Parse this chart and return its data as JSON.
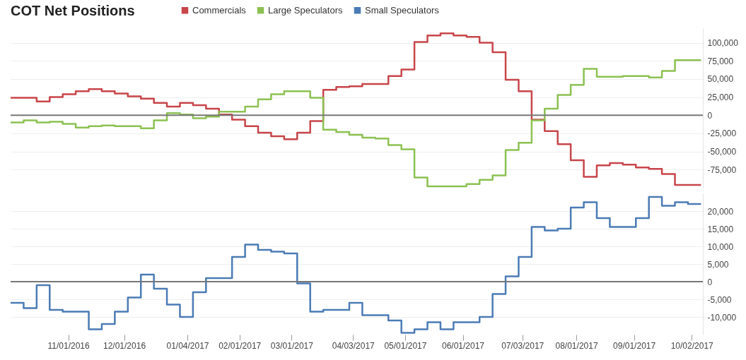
{
  "chart_data": [
    {
      "type": "step",
      "title": "COT Net Positions",
      "x": [
        "2016-10-01",
        "2016-10-08",
        "2016-10-15",
        "2016-10-22",
        "2016-10-29",
        "2016-11-05",
        "2016-11-12",
        "2016-11-19",
        "2016-11-26",
        "2016-12-03",
        "2016-12-10",
        "2016-12-17",
        "2016-12-24",
        "2016-12-31",
        "2017-01-07",
        "2017-01-14",
        "2017-01-21",
        "2017-01-28",
        "2017-02-04",
        "2017-02-11",
        "2017-02-18",
        "2017-02-25",
        "2017-03-04",
        "2017-03-11",
        "2017-03-18",
        "2017-03-25",
        "2017-04-01",
        "2017-04-08",
        "2017-04-15",
        "2017-04-22",
        "2017-04-29",
        "2017-05-06",
        "2017-05-13",
        "2017-05-20",
        "2017-05-27",
        "2017-06-03",
        "2017-06-10",
        "2017-06-17",
        "2017-06-24",
        "2017-07-01",
        "2017-07-08",
        "2017-07-15",
        "2017-07-22",
        "2017-07-29",
        "2017-08-05",
        "2017-08-12",
        "2017-08-19",
        "2017-08-26",
        "2017-09-02",
        "2017-09-09",
        "2017-09-16",
        "2017-09-23",
        "2017-09-30",
        "2017-10-07"
      ],
      "series": [
        {
          "name": "Commercials",
          "color": "#c8454a",
          "values": [
            24000,
            24000,
            19000,
            25000,
            29000,
            33000,
            36000,
            33000,
            30000,
            26000,
            23000,
            17000,
            12000,
            17000,
            14000,
            9000,
            1000,
            -6000,
            -15000,
            -24000,
            -29000,
            -33000,
            -24000,
            -8000,
            35000,
            39000,
            40000,
            43000,
            43000,
            54000,
            63000,
            101000,
            110000,
            113000,
            110000,
            108000,
            100000,
            87000,
            49000,
            33000,
            -6000,
            -22000,
            -40000,
            -62000,
            -85000,
            -69000,
            -66000,
            -68000,
            -72000,
            -74000,
            -81000,
            -96000,
            -96000,
            -96000
          ]
        },
        {
          "name": "Large Speculators",
          "color": "#8cc152",
          "values": [
            -10000,
            -7000,
            -10000,
            -9000,
            -12000,
            -17000,
            -15000,
            -14000,
            -15000,
            -15000,
            -18000,
            -7000,
            3000,
            1000,
            -4000,
            -2000,
            5000,
            5000,
            12000,
            22000,
            29000,
            33000,
            33000,
            24000,
            -20000,
            -23000,
            -27000,
            -31000,
            -32000,
            -41000,
            -47000,
            -86000,
            -98000,
            -98000,
            -98000,
            -95000,
            -89000,
            -83000,
            -48000,
            -38000,
            -7000,
            9000,
            28000,
            42000,
            64000,
            53000,
            53000,
            54000,
            54000,
            52000,
            61000,
            76000,
            76000,
            76000
          ]
        }
      ],
      "xlim": [
        "2016-10-01",
        "2017-10-08"
      ],
      "ylim": [
        -100000,
        120000
      ],
      "yticks": [
        {
          "value": -75000,
          "label": "-75,000"
        },
        {
          "value": -50000,
          "label": "-50,000"
        },
        {
          "value": -25000,
          "label": "-25,000"
        },
        0,
        {
          "value": 25000,
          "label": "25,000"
        },
        {
          "value": 50000,
          "label": "50,000"
        },
        {
          "value": 75000,
          "label": "75,000"
        },
        {
          "value": 100000,
          "label": "100,000"
        }
      ],
      "grid": "y",
      "legend": "top",
      "tick_labels": "y",
      "ref_lines": [
        {
          "axis": "y",
          "value": 0,
          "color": "#777777"
        }
      ]
    },
    {
      "type": "step",
      "x": [
        "2016-10-01",
        "2016-10-08",
        "2016-10-15",
        "2016-10-22",
        "2016-10-29",
        "2016-11-05",
        "2016-11-12",
        "2016-11-19",
        "2016-11-26",
        "2016-12-03",
        "2016-12-10",
        "2016-12-17",
        "2016-12-24",
        "2016-12-31",
        "2017-01-07",
        "2017-01-14",
        "2017-01-21",
        "2017-01-28",
        "2017-02-04",
        "2017-02-11",
        "2017-02-18",
        "2017-02-25",
        "2017-03-04",
        "2017-03-11",
        "2017-03-18",
        "2017-03-25",
        "2017-04-01",
        "2017-04-08",
        "2017-04-15",
        "2017-04-22",
        "2017-04-29",
        "2017-05-06",
        "2017-05-13",
        "2017-05-20",
        "2017-05-27",
        "2017-06-03",
        "2017-06-10",
        "2017-06-17",
        "2017-06-24",
        "2017-07-01",
        "2017-07-08",
        "2017-07-15",
        "2017-07-22",
        "2017-07-29",
        "2017-08-05",
        "2017-08-12",
        "2017-08-19",
        "2017-08-26",
        "2017-09-02",
        "2017-09-09",
        "2017-09-16",
        "2017-09-23",
        "2017-09-30",
        "2017-10-07"
      ],
      "series": [
        {
          "name": "Small Speculators",
          "color": "#4b7bb5",
          "values": [
            -6000,
            -7500,
            -1000,
            -8000,
            -8500,
            -8500,
            -13500,
            -12000,
            -8500,
            -4500,
            2000,
            -2000,
            -6500,
            -10000,
            -3000,
            1000,
            1000,
            7000,
            10500,
            9000,
            8500,
            8000,
            -500,
            -8500,
            -8000,
            -8000,
            -6000,
            -9500,
            -9500,
            -11000,
            -14500,
            -13500,
            -11500,
            -13500,
            -11500,
            -11500,
            -10000,
            -3500,
            1500,
            7000,
            15500,
            14500,
            15000,
            21000,
            22500,
            18000,
            15500,
            15500,
            18000,
            24000,
            21500,
            22500,
            22000,
            22000
          ]
        }
      ],
      "xlim": [
        "2016-10-01",
        "2017-10-08"
      ],
      "xticks": [
        {
          "value": "2016-11-01",
          "label": "11/01/2016"
        },
        {
          "value": "2016-12-01",
          "label": "12/01/2016"
        },
        {
          "value": "2017-01-04",
          "label": "01/04/2017"
        },
        {
          "value": "2017-02-01",
          "label": "02/01/2017"
        },
        {
          "value": "2017-03-01",
          "label": "03/01/2017"
        },
        {
          "value": "2017-04-03",
          "label": "04/03/2017"
        },
        {
          "value": "2017-05-01",
          "label": "05/01/2017"
        },
        {
          "value": "2017-06-01",
          "label": "06/01/2017"
        },
        {
          "value": "2017-07-03",
          "label": "07/03/2017"
        },
        {
          "value": "2017-08-01",
          "label": "08/01/2017"
        },
        {
          "value": "2017-09-01",
          "label": "09/01/2017"
        },
        {
          "value": "2017-10-02",
          "label": "10/02/2017"
        }
      ],
      "ylim": [
        -15000,
        25000
      ],
      "yticks": [
        {
          "value": -10000,
          "label": "-10,000"
        },
        {
          "value": -5000,
          "label": "-5,000"
        },
        0,
        {
          "value": 5000,
          "label": "5,000"
        },
        {
          "value": 10000,
          "label": "10,000"
        },
        {
          "value": 15000,
          "label": "15,000"
        },
        {
          "value": 20000,
          "label": "20,000"
        }
      ],
      "grid": "y",
      "legend": "top",
      "ref_lines": [
        {
          "axis": "y",
          "value": 0,
          "color": "#777777"
        }
      ]
    }
  ]
}
